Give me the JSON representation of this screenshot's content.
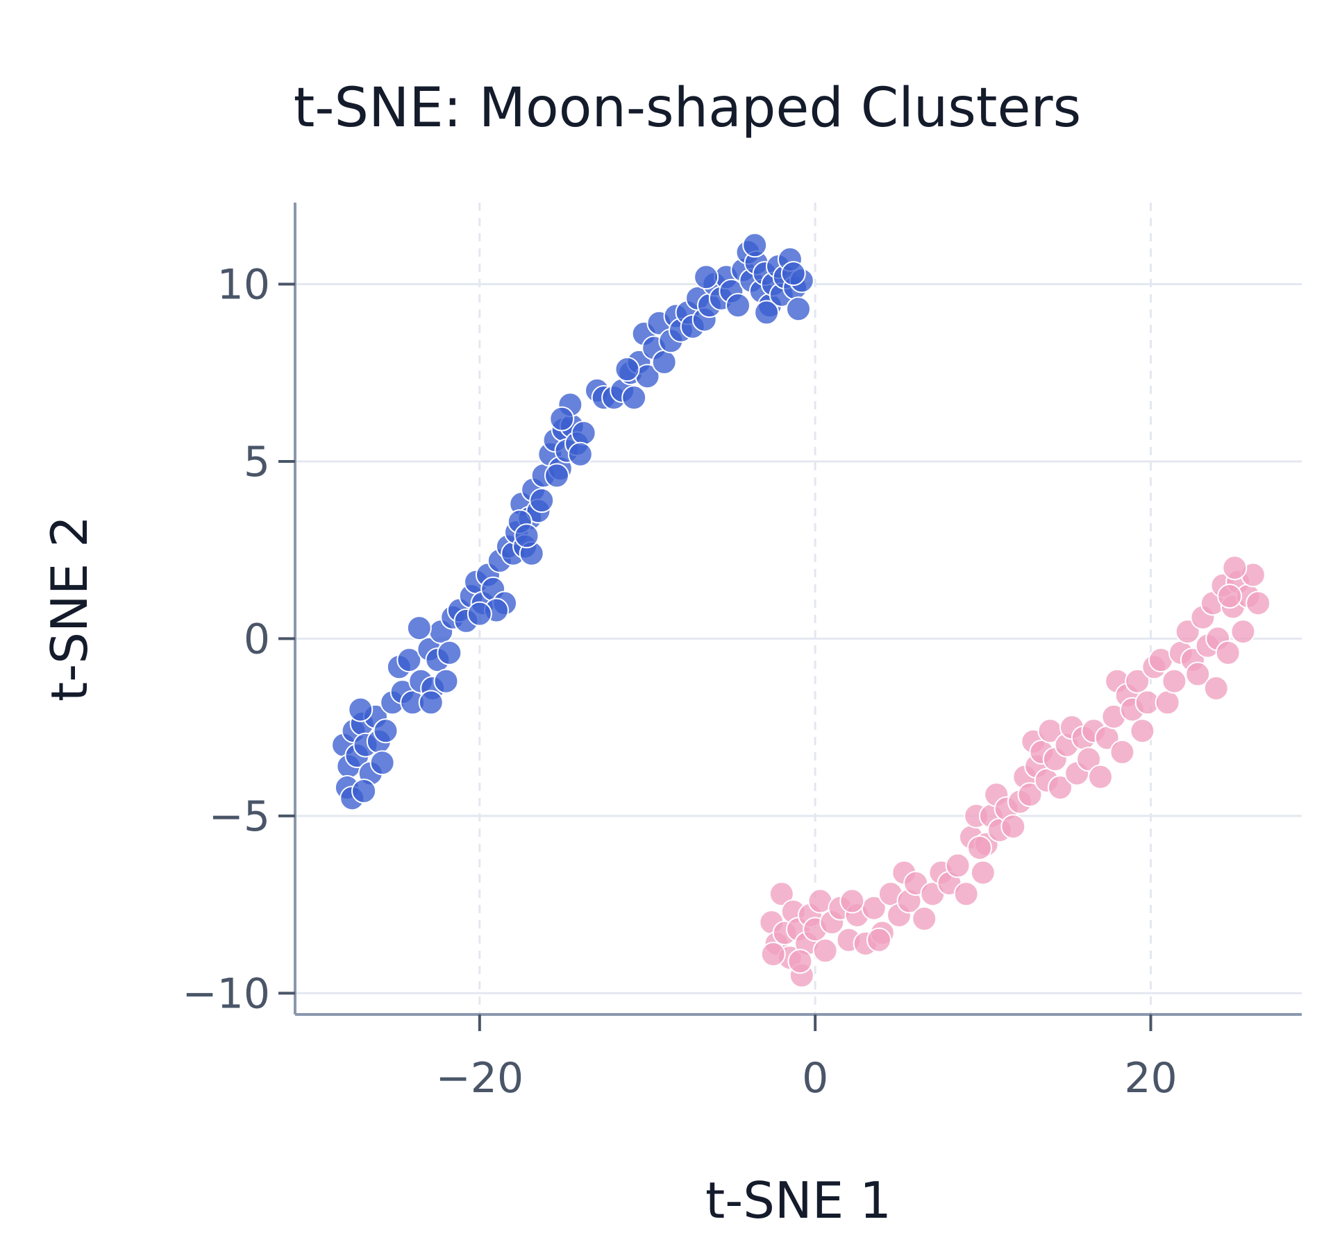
{
  "chart_data": {
    "type": "scatter",
    "title": "t-SNE: Moon-shaped Clusters",
    "xlabel": "t-SNE 1",
    "ylabel": "t-SNE 2",
    "xlim": [
      -31,
      29
    ],
    "ylim": [
      -10.6,
      12.3
    ],
    "xticks": [
      -20,
      0,
      20
    ],
    "xtick_labels": [
      "−20",
      "0",
      "20"
    ],
    "yticks": [
      -10,
      -5,
      0,
      5,
      10
    ],
    "ytick_labels": [
      "−10",
      "−5",
      "0",
      "5",
      "10"
    ],
    "grid": true,
    "legend": "none",
    "series": [
      {
        "color": "#3b5fd0",
        "points": [
          [
            -28.1,
            -3.0
          ],
          [
            -27.8,
            -3.6
          ],
          [
            -27.5,
            -2.6
          ],
          [
            -27.9,
            -4.2
          ],
          [
            -27.3,
            -3.3
          ],
          [
            -27.0,
            -2.4
          ],
          [
            -26.8,
            -3.0
          ],
          [
            -26.5,
            -3.8
          ],
          [
            -26.2,
            -2.2
          ],
          [
            -26.0,
            -2.9
          ],
          [
            -25.8,
            -3.5
          ],
          [
            -27.6,
            -4.5
          ],
          [
            -26.9,
            -4.3
          ],
          [
            -25.6,
            -2.6
          ],
          [
            -27.1,
            -2.0
          ],
          [
            -25.2,
            -1.8
          ],
          [
            -24.6,
            -1.5
          ],
          [
            -24.0,
            -1.8
          ],
          [
            -24.8,
            -0.8
          ],
          [
            -24.2,
            -0.6
          ],
          [
            -23.5,
            -1.2
          ],
          [
            -23.0,
            -0.3
          ],
          [
            -22.8,
            -1.4
          ],
          [
            -22.5,
            -0.6
          ],
          [
            -22.3,
            0.2
          ],
          [
            -22.0,
            -1.2
          ],
          [
            -21.8,
            -0.4
          ],
          [
            -21.6,
            0.6
          ],
          [
            -23.6,
            0.3
          ],
          [
            -22.9,
            -1.8
          ],
          [
            -21.2,
            0.8
          ],
          [
            -20.8,
            0.5
          ],
          [
            -20.5,
            1.2
          ],
          [
            -20.2,
            1.6
          ],
          [
            -19.8,
            1.0
          ],
          [
            -19.5,
            1.8
          ],
          [
            -19.2,
            1.4
          ],
          [
            -18.8,
            2.2
          ],
          [
            -18.5,
            1.0
          ],
          [
            -18.3,
            2.6
          ],
          [
            -19.0,
            0.8
          ],
          [
            -20.0,
            0.7
          ],
          [
            -18.0,
            2.4
          ],
          [
            -17.8,
            3.0
          ],
          [
            -17.5,
            3.8
          ],
          [
            -17.3,
            2.6
          ],
          [
            -17.0,
            3.4
          ],
          [
            -16.8,
            4.2
          ],
          [
            -16.5,
            3.6
          ],
          [
            -16.2,
            4.6
          ],
          [
            -17.6,
            3.3
          ],
          [
            -16.9,
            2.4
          ],
          [
            -16.3,
            3.9
          ],
          [
            -17.2,
            2.9
          ],
          [
            -15.8,
            5.2
          ],
          [
            -15.5,
            5.6
          ],
          [
            -15.2,
            4.8
          ],
          [
            -15.0,
            5.9
          ],
          [
            -14.8,
            5.3
          ],
          [
            -14.5,
            6.0
          ],
          [
            -14.2,
            5.5
          ],
          [
            -13.8,
            5.8
          ],
          [
            -14.6,
            6.6
          ],
          [
            -15.4,
            4.6
          ],
          [
            -14.0,
            5.2
          ],
          [
            -15.1,
            6.2
          ],
          [
            -13.0,
            7.0
          ],
          [
            -12.6,
            6.8
          ],
          [
            -12.0,
            6.8
          ],
          [
            -11.5,
            7.0
          ],
          [
            -11.0,
            7.5
          ],
          [
            -10.8,
            6.8
          ],
          [
            -10.5,
            7.8
          ],
          [
            -10.2,
            8.6
          ],
          [
            -10.0,
            7.4
          ],
          [
            -9.6,
            8.2
          ],
          [
            -9.3,
            8.9
          ],
          [
            -9.0,
            7.8
          ],
          [
            -8.6,
            8.4
          ],
          [
            -8.3,
            9.1
          ],
          [
            -8.0,
            8.7
          ],
          [
            -11.2,
            7.6
          ],
          [
            -7.6,
            9.2
          ],
          [
            -7.3,
            8.8
          ],
          [
            -7.0,
            9.6
          ],
          [
            -6.6,
            9.0
          ],
          [
            -6.3,
            9.4
          ],
          [
            -6.0,
            10.0
          ],
          [
            -5.6,
            9.6
          ],
          [
            -5.3,
            10.2
          ],
          [
            -5.0,
            9.8
          ],
          [
            -4.6,
            9.4
          ],
          [
            -4.3,
            10.4
          ],
          [
            -4.0,
            10.9
          ],
          [
            -3.8,
            10.1
          ],
          [
            -3.5,
            10.6
          ],
          [
            -3.2,
            9.8
          ],
          [
            -3.0,
            10.3
          ],
          [
            -2.7,
            9.4
          ],
          [
            -2.5,
            10.0
          ],
          [
            -2.2,
            10.5
          ],
          [
            -2.0,
            9.7
          ],
          [
            -1.8,
            10.2
          ],
          [
            -1.5,
            10.7
          ],
          [
            -1.2,
            9.9
          ],
          [
            -1.0,
            9.3
          ],
          [
            -0.8,
            10.1
          ],
          [
            -3.6,
            11.1
          ],
          [
            -6.5,
            10.2
          ],
          [
            -2.9,
            9.2
          ],
          [
            -1.3,
            10.3
          ]
        ]
      },
      {
        "color": "#f0a0c0",
        "points": [
          [
            -2.6,
            -8.0
          ],
          [
            -2.3,
            -8.6
          ],
          [
            -2.0,
            -7.2
          ],
          [
            -1.8,
            -8.3
          ],
          [
            -1.5,
            -9.0
          ],
          [
            -1.3,
            -7.7
          ],
          [
            -1.0,
            -8.2
          ],
          [
            -0.8,
            -9.5
          ],
          [
            -0.5,
            -8.6
          ],
          [
            -0.3,
            -7.8
          ],
          [
            0.0,
            -8.2
          ],
          [
            0.3,
            -7.4
          ],
          [
            0.6,
            -8.8
          ],
          [
            -2.5,
            -8.9
          ],
          [
            -0.9,
            -9.1
          ],
          [
            1.0,
            -8.0
          ],
          [
            1.5,
            -7.6
          ],
          [
            2.0,
            -8.5
          ],
          [
            2.5,
            -7.8
          ],
          [
            3.0,
            -8.6
          ],
          [
            3.5,
            -7.6
          ],
          [
            4.0,
            -8.3
          ],
          [
            4.5,
            -7.2
          ],
          [
            5.0,
            -7.8
          ],
          [
            5.3,
            -6.6
          ],
          [
            5.6,
            -7.4
          ],
          [
            6.0,
            -6.9
          ],
          [
            6.5,
            -7.9
          ],
          [
            7.0,
            -7.2
          ],
          [
            2.2,
            -7.4
          ],
          [
            3.8,
            -8.5
          ],
          [
            7.5,
            -6.6
          ],
          [
            8.0,
            -6.9
          ],
          [
            8.5,
            -6.4
          ],
          [
            9.0,
            -7.2
          ],
          [
            9.3,
            -5.6
          ],
          [
            9.6,
            -5.0
          ],
          [
            10.0,
            -6.6
          ],
          [
            10.2,
            -5.8
          ],
          [
            10.5,
            -5.0
          ],
          [
            10.8,
            -4.4
          ],
          [
            11.0,
            -5.4
          ],
          [
            11.4,
            -4.8
          ],
          [
            11.8,
            -5.3
          ],
          [
            9.8,
            -5.9
          ],
          [
            12.2,
            -4.6
          ],
          [
            12.5,
            -3.9
          ],
          [
            12.8,
            -4.4
          ],
          [
            13.0,
            -2.9
          ],
          [
            13.2,
            -3.6
          ],
          [
            13.5,
            -3.2
          ],
          [
            13.8,
            -4.0
          ],
          [
            14.0,
            -2.6
          ],
          [
            14.3,
            -3.4
          ],
          [
            14.6,
            -4.2
          ],
          [
            15.0,
            -3.0
          ],
          [
            15.3,
            -2.5
          ],
          [
            15.6,
            -3.8
          ],
          [
            16.0,
            -2.8
          ],
          [
            16.3,
            -3.4
          ],
          [
            16.6,
            -2.6
          ],
          [
            17.0,
            -3.9
          ],
          [
            17.4,
            -2.8
          ],
          [
            17.8,
            -2.2
          ],
          [
            18.0,
            -1.2
          ],
          [
            18.3,
            -3.2
          ],
          [
            18.6,
            -1.6
          ],
          [
            18.9,
            -2.0
          ],
          [
            19.2,
            -1.2
          ],
          [
            19.5,
            -2.6
          ],
          [
            19.8,
            -1.8
          ],
          [
            20.2,
            -0.8
          ],
          [
            20.6,
            -0.6
          ],
          [
            21.0,
            -1.8
          ],
          [
            21.4,
            -1.2
          ],
          [
            21.8,
            -0.4
          ],
          [
            22.2,
            0.2
          ],
          [
            22.5,
            -0.6
          ],
          [
            22.8,
            -1.0
          ],
          [
            23.1,
            0.6
          ],
          [
            23.4,
            -0.2
          ],
          [
            23.7,
            1.0
          ],
          [
            24.0,
            0.0
          ],
          [
            24.3,
            1.5
          ],
          [
            24.6,
            -0.4
          ],
          [
            24.9,
            0.9
          ],
          [
            25.2,
            1.6
          ],
          [
            25.5,
            0.2
          ],
          [
            25.8,
            1.2
          ],
          [
            26.1,
            1.8
          ],
          [
            26.4,
            1.0
          ],
          [
            25.0,
            2.0
          ],
          [
            23.9,
            -1.4
          ],
          [
            24.7,
            1.2
          ]
        ]
      }
    ]
  }
}
